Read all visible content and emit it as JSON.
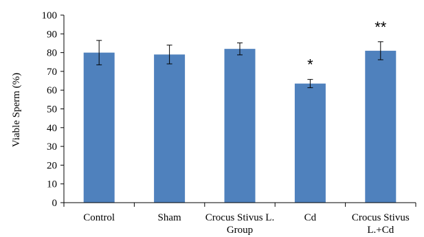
{
  "chart_data": {
    "type": "bar",
    "title": "",
    "xlabel": "",
    "ylabel": "Viable Sperm (%)",
    "ylim": [
      0,
      100
    ],
    "yticks": [
      "0",
      "10",
      "20",
      "30",
      "40",
      "50",
      "60",
      "70",
      "80",
      "90",
      "100"
    ],
    "categories": [
      [
        "Control"
      ],
      [
        "Sham"
      ],
      [
        "Crocus Stivus L.",
        "Group"
      ],
      [
        "Cd"
      ],
      [
        "Crocus Stivus",
        "L.+Cd"
      ]
    ],
    "series": [
      {
        "values": [
          80,
          79,
          82,
          63.5,
          81
        ],
        "errors": [
          6.5,
          5,
          3.2,
          2.2,
          4.8
        ],
        "color": "#4f81bd"
      }
    ],
    "annotations": [
      "",
      "",
      "",
      "*",
      "**"
    ],
    "grid": false
  }
}
